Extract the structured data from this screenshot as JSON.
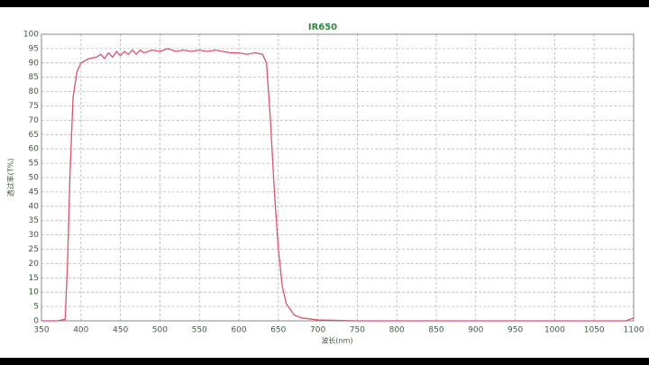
{
  "chart_data": {
    "type": "line",
    "title": "IR650",
    "x_label": "波长(nm)",
    "y_label": "透过率(T%)",
    "x": [
      350,
      370,
      380,
      383,
      386,
      390,
      395,
      400,
      410,
      420,
      425,
      430,
      435,
      440,
      445,
      450,
      455,
      460,
      465,
      470,
      475,
      480,
      490,
      500,
      510,
      520,
      530,
      540,
      550,
      560,
      570,
      580,
      590,
      600,
      610,
      620,
      630,
      635,
      640,
      645,
      650,
      655,
      660,
      670,
      680,
      700,
      750,
      1000,
      1090,
      1100
    ],
    "values": [
      0,
      0,
      0.5,
      20,
      50,
      78,
      87,
      90,
      91.5,
      92,
      93,
      91.5,
      93.5,
      92,
      94,
      92.5,
      94,
      93,
      94.5,
      93,
      94.5,
      93.5,
      94.5,
      94,
      95,
      94,
      94.5,
      94,
      94.5,
      94,
      94.5,
      94,
      93.5,
      93.5,
      93,
      93.5,
      93,
      90,
      70,
      45,
      25,
      12,
      6,
      2,
      1,
      0.3,
      0,
      0,
      0,
      1
    ],
    "color": "#e0506a",
    "xlim": [
      350,
      1100
    ],
    "xticks": [
      350,
      400,
      450,
      500,
      550,
      600,
      650,
      700,
      750,
      800,
      850,
      900,
      950,
      1000,
      1050,
      1100
    ],
    "ylim": [
      0,
      100
    ],
    "yticks": [
      0,
      5,
      10,
      15,
      20,
      25,
      30,
      35,
      40,
      45,
      50,
      55,
      60,
      65,
      70,
      75,
      80,
      85,
      90,
      95,
      100
    ],
    "grid": true
  }
}
